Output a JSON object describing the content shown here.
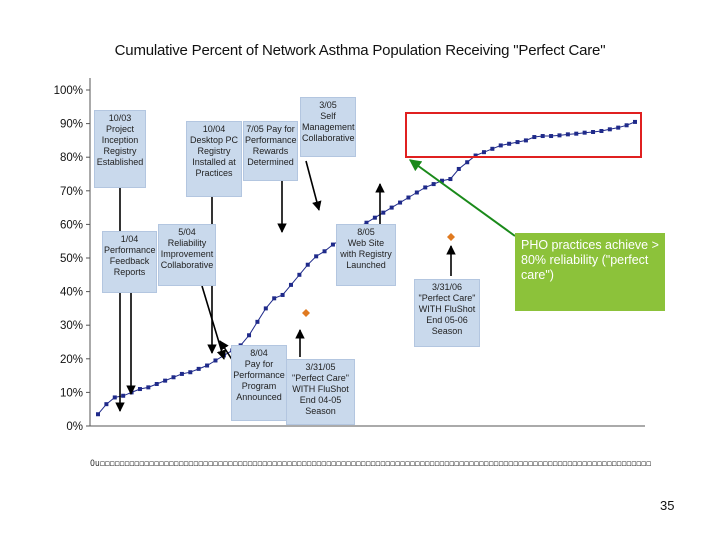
{
  "slide": {
    "page_number": "35"
  },
  "colors": {
    "line": "#1f2a8a",
    "annotation_fill": "#c9d9ec",
    "highlight_box": "#e02020",
    "pho_box": "#8cc23a",
    "green_arrow": "#1a8a1a",
    "diamond": "#e07a20"
  },
  "chart_data": {
    "type": "line",
    "title": "Cumulative Percent of Network Asthma Population Receiving \"Perfect Care\"",
    "xlabel": "",
    "ylabel": "",
    "ylim": [
      0,
      100
    ],
    "y_ticks": [
      "0%",
      "10%",
      "20%",
      "30%",
      "40%",
      "50%",
      "60%",
      "70%",
      "80%",
      "90%",
      "100%"
    ],
    "grid": false,
    "x_tick_text": "Ou◻◻◻◻◻◻◻◻◻◻◻◻◻◻◻◻◻◻◻◻◻◻◻◻◻◻◻◻◻◻◻◻◻◻◻◻◻◻◻◻◻◻◻◻◻◻◻◻◻◻◻◻◻◻◻◻◻◻◻◻◻◻◻◻◻◻◻◻◻◻◻◻◻◻◻◻◻◻◻◻◻◻◻◻◻◻◻◻◻◻◻◻◻◻◻◻◻◻◻◻◻◻◻◻◻◻◻◻◻◻◻◻",
    "series": [
      {
        "values": [
          3.5,
          6.5,
          8.5,
          9,
          10,
          11,
          11.5,
          12.5,
          13.5,
          14.5,
          15.5,
          16,
          17,
          18,
          19.5,
          21,
          22.5,
          24,
          27,
          31,
          35,
          38,
          39,
          42,
          45,
          48,
          50.5,
          52,
          54,
          55.5,
          57,
          59,
          60.5,
          62,
          63.5,
          65,
          66.5,
          68,
          69.5,
          71,
          72,
          73,
          73.5,
          76.5,
          78.5,
          80.5,
          81.5,
          82.5,
          83.5,
          84,
          84.5,
          85,
          86,
          86.3,
          86.3,
          86.5,
          86.8,
          87,
          87.3,
          87.5,
          87.8,
          88.3,
          88.8,
          89.5,
          90.5
        ]
      }
    ],
    "annotations": [
      {
        "text": "10/03\nProject\nInception\nRegistry\nEstablished"
      },
      {
        "text": "10/04\nDesktop PC\nRegistry\nInstalled at\nPractices"
      },
      {
        "text": "7/05 Pay for\nPerformance\nRewards\nDetermined"
      },
      {
        "text": "3/05\nSelf\nManagement\nCollaborative"
      },
      {
        "text": "1/04\nPerformance\nFeedback\nReports"
      },
      {
        "text": "5/04\nReliability\nImprovement\nCollaborative"
      },
      {
        "text": "8/05\nWeb Site\nwith Registry\nLaunched"
      },
      {
        "text": "3/31/06\n\"Perfect Care\"\nWITH FluShot\nEnd 05-06 Season"
      },
      {
        "text": "8/04\nPay for\nPerformance\nProgram\nAnnounced"
      },
      {
        "text": "3/31/05\n\"Perfect Care\"\nWITH FluShot\nEnd 04-05 Season"
      }
    ],
    "callout": "PHO practices achieve > 80% reliability (\"perfect care\")"
  }
}
